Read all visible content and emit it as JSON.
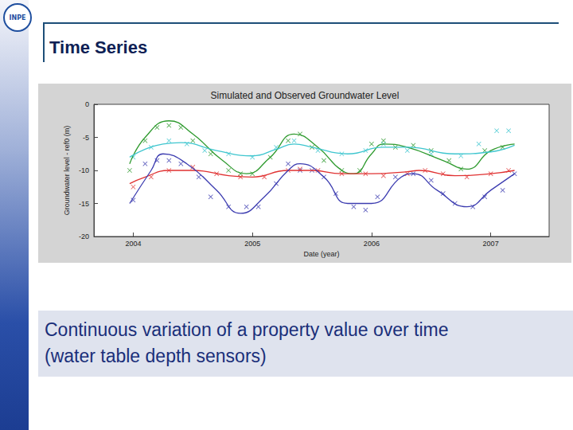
{
  "slide": {
    "logo": "INPE",
    "title": "Time Series",
    "caption": [
      "Continuous variation of a property value over time",
      "(water table depth sensors)"
    ]
  },
  "chart_data": {
    "type": "line",
    "title": "Simulated and Observed Groundwater Level",
    "xlabel": "Date (year)",
    "ylabel": "Groundwater level - ref0 (m)",
    "xlim": [
      2003.67,
      2007.49
    ],
    "xticks": [
      2004,
      2005,
      2006,
      2007
    ],
    "ylim": [
      -20,
      0
    ],
    "yticks": [
      -20,
      -15,
      -10,
      -5,
      0
    ],
    "grid": false,
    "series": [
      {
        "type": "line",
        "color": "#2e9a2e",
        "x": [
          2003.97,
          2004.1,
          2004.3,
          2004.5,
          2004.75,
          2004.95,
          2005.15,
          2005.35,
          2005.55,
          2005.75,
          2005.85,
          2006.0,
          2006.1,
          2006.3,
          2006.6,
          2006.8,
          2007.0,
          2007.2
        ],
        "values": [
          -9,
          -5,
          -2.5,
          -4.5,
          -8.5,
          -10.5,
          -8,
          -4.5,
          -6.5,
          -10,
          -10.5,
          -7.5,
          -6,
          -6.5,
          -8.5,
          -9.8,
          -7,
          -6
        ]
      },
      {
        "type": "line",
        "color": "#3fc6cf",
        "x": [
          2003.97,
          2004.1,
          2004.25,
          2004.4,
          2004.7,
          2005.0,
          2005.2,
          2005.35,
          2005.5,
          2005.8,
          2006.1,
          2006.3,
          2006.7,
          2007.0,
          2007.2
        ],
        "values": [
          -8,
          -6.8,
          -6,
          -5.8,
          -7,
          -7.8,
          -6.8,
          -6,
          -6.5,
          -7.5,
          -6.5,
          -6.5,
          -7.5,
          -7.2,
          -6.2
        ]
      },
      {
        "type": "line",
        "color": "#e03232",
        "x": [
          2003.97,
          2004.1,
          2004.3,
          2004.5,
          2004.8,
          2005.0,
          2005.3,
          2005.5,
          2005.75,
          2006.0,
          2006.3,
          2006.4,
          2006.7,
          2007.0,
          2007.2
        ],
        "values": [
          -12,
          -11,
          -10,
          -10,
          -10.8,
          -11,
          -10,
          -10,
          -10.5,
          -10.5,
          -10.2,
          -10,
          -10.8,
          -10.5,
          -10
        ]
      },
      {
        "type": "line",
        "color": "#3c3cb0",
        "x": [
          2003.97,
          2004.15,
          2004.25,
          2004.45,
          2004.7,
          2004.9,
          2005.1,
          2005.3,
          2005.4,
          2005.6,
          2005.8,
          2006.0,
          2006.25,
          2006.35,
          2006.55,
          2006.8,
          2007.0,
          2007.2
        ],
        "values": [
          -15,
          -10,
          -7.5,
          -9,
          -13,
          -16.5,
          -14,
          -10,
          -9,
          -11,
          -15,
          -15,
          -11,
          -10.5,
          -13,
          -15.5,
          -13,
          -10.5
        ]
      },
      {
        "type": "scatter",
        "marker": "x",
        "color": "#2e9a2e",
        "x": [
          2003.97,
          2004.1,
          2004.2,
          2004.3,
          2004.4,
          2004.5,
          2004.65,
          2004.8,
          2004.9,
          2005.0,
          2005.15,
          2005.3,
          2005.4,
          2005.5,
          2005.6,
          2005.75,
          2005.9,
          2006.0,
          2006.1,
          2006.2,
          2006.35,
          2006.5,
          2006.65,
          2006.75,
          2006.95,
          2007.1
        ],
        "values": [
          -10,
          -5.5,
          -3.5,
          -3.2,
          -3.5,
          -5.5,
          -7.5,
          -10,
          -10.5,
          -10.5,
          -8,
          -5.5,
          -4.5,
          -6.5,
          -8.5,
          -10,
          -10,
          -6,
          -5.5,
          -6.5,
          -6.2,
          -7,
          -8.5,
          -9.8,
          -7,
          -6.5
        ]
      },
      {
        "type": "scatter",
        "marker": "x",
        "color": "#3fc6cf",
        "x": [
          2004.0,
          2004.15,
          2004.3,
          2004.45,
          2004.6,
          2004.8,
          2005.0,
          2005.2,
          2005.35,
          2005.55,
          2005.75,
          2005.95,
          2006.1,
          2006.3,
          2006.5,
          2006.75,
          2006.9,
          2007.05,
          2007.15
        ],
        "values": [
          -8,
          -6.5,
          -5.5,
          -6,
          -7,
          -7.5,
          -8,
          -6.5,
          -5.5,
          -7,
          -7.5,
          -7,
          -6,
          -7,
          -7.5,
          -7.8,
          -6,
          -4,
          -4
        ]
      },
      {
        "type": "scatter",
        "marker": "x",
        "color": "#e03232",
        "x": [
          2004.0,
          2004.15,
          2004.3,
          2004.5,
          2004.7,
          2004.9,
          2005.1,
          2005.3,
          2005.4,
          2005.55,
          2005.75,
          2005.95,
          2006.1,
          2006.3,
          2006.45,
          2006.6,
          2006.8,
          2007.0,
          2007.15
        ],
        "values": [
          -12.5,
          -11,
          -10,
          -9.5,
          -10.5,
          -11,
          -11,
          -10,
          -9.8,
          -10,
          -10.5,
          -10.5,
          -10.8,
          -10.5,
          -10,
          -10.5,
          -11,
          -10.5,
          -10
        ]
      },
      {
        "type": "scatter",
        "marker": "x",
        "color": "#3c3cb0",
        "x": [
          2004.0,
          2004.1,
          2004.2,
          2004.3,
          2004.4,
          2004.55,
          2004.65,
          2004.8,
          2004.95,
          2005.05,
          2005.2,
          2005.3,
          2005.4,
          2005.5,
          2005.6,
          2005.7,
          2005.85,
          2005.95,
          2006.05,
          2006.2,
          2006.35,
          2006.5,
          2006.6,
          2006.7,
          2006.85,
          2006.95,
          2007.1,
          2007.2
        ],
        "values": [
          -14.5,
          -9,
          -8.5,
          -8.5,
          -9,
          -11,
          -14,
          -15.5,
          -15.5,
          -15.5,
          -12,
          -9,
          -10,
          -10,
          -11,
          -13.5,
          -15.5,
          -16,
          -14,
          -11,
          -10.5,
          -11.5,
          -13.5,
          -15,
          -15.5,
          -14,
          -13,
          -10.5
        ]
      }
    ]
  }
}
